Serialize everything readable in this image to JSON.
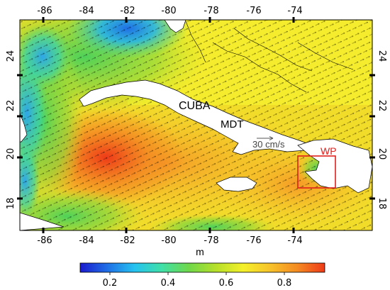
{
  "map": {
    "title": "",
    "top_ticks": [
      "-86",
      "-84",
      "-82",
      "-80",
      "-78",
      "-76",
      "-74"
    ],
    "bottom_ticks": [
      "-86",
      "-84",
      "-82",
      "-80",
      "-78",
      "-76",
      "-74"
    ],
    "left_ticks": [
      "24",
      "22",
      "20",
      "18"
    ],
    "right_ticks": [
      "24",
      "22",
      "20",
      "18"
    ],
    "labels": {
      "cuba": "CUBA",
      "mdt": "MDT",
      "speed": "30 cm/s",
      "wp": "WP"
    },
    "wp_color": "#e0201c",
    "extent": {
      "lon": [
        -87.5,
        -72.0
      ],
      "lat": [
        17.0,
        25.5
      ]
    }
  },
  "colorbar": {
    "unit": "m",
    "ticks": [
      "0.2",
      "0.4",
      "0.6",
      "0.8"
    ],
    "range": [
      0.08,
      0.92
    ],
    "colors": [
      "#1a1acd",
      "#1f6fe6",
      "#25c2f0",
      "#3fe0a8",
      "#6fd84a",
      "#b6e02a",
      "#f4f02a",
      "#f7c22a",
      "#f48a22",
      "#ee3a18"
    ]
  }
}
